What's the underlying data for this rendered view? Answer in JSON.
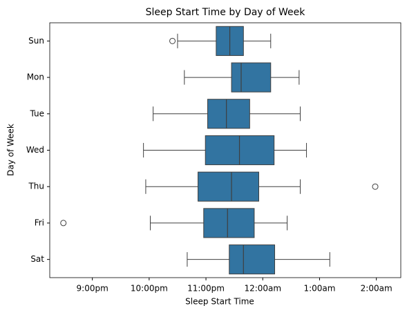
{
  "chart_data": {
    "type": "box",
    "orientation": "horizontal",
    "title": "Sleep Start Time by Day of Week",
    "x_label": "Sleep Start Time",
    "y_label": "Day of Week",
    "color": "#3274a1",
    "categories": [
      "Sun",
      "Mon",
      "Tue",
      "Wed",
      "Thu",
      "Fri",
      "Sat"
    ],
    "boxes": [
      {
        "min": 22.5,
        "q1": 23.18,
        "median": 23.42,
        "q3": 23.66,
        "max": 24.14,
        "outliers": [
          22.41
        ]
      },
      {
        "min": 22.62,
        "q1": 23.45,
        "median": 23.62,
        "q3": 24.14,
        "max": 24.64,
        "outliers": []
      },
      {
        "min": 22.07,
        "q1": 23.03,
        "median": 23.36,
        "q3": 23.77,
        "max": 24.66,
        "outliers": []
      },
      {
        "min": 21.9,
        "q1": 22.99,
        "median": 23.59,
        "q3": 24.2,
        "max": 24.77,
        "outliers": []
      },
      {
        "min": 21.94,
        "q1": 22.86,
        "median": 23.45,
        "q3": 23.93,
        "max": 24.66,
        "outliers": [
          25.98
        ]
      },
      {
        "min": 22.02,
        "q1": 22.96,
        "median": 23.38,
        "q3": 23.85,
        "max": 24.43,
        "outliers": [
          20.49
        ]
      },
      {
        "min": 22.67,
        "q1": 23.41,
        "median": 23.66,
        "q3": 24.21,
        "max": 25.18,
        "outliers": []
      }
    ],
    "xlim": [
      20.25,
      26.43
    ],
    "xticks": [
      {
        "value": 21,
        "label": "9:00pm"
      },
      {
        "value": 22,
        "label": "10:00pm"
      },
      {
        "value": 23,
        "label": "11:00pm"
      },
      {
        "value": 24,
        "label": "12:00am"
      },
      {
        "value": 25,
        "label": "1:00am"
      },
      {
        "value": 26,
        "label": "2:00am"
      }
    ],
    "grid": false
  }
}
